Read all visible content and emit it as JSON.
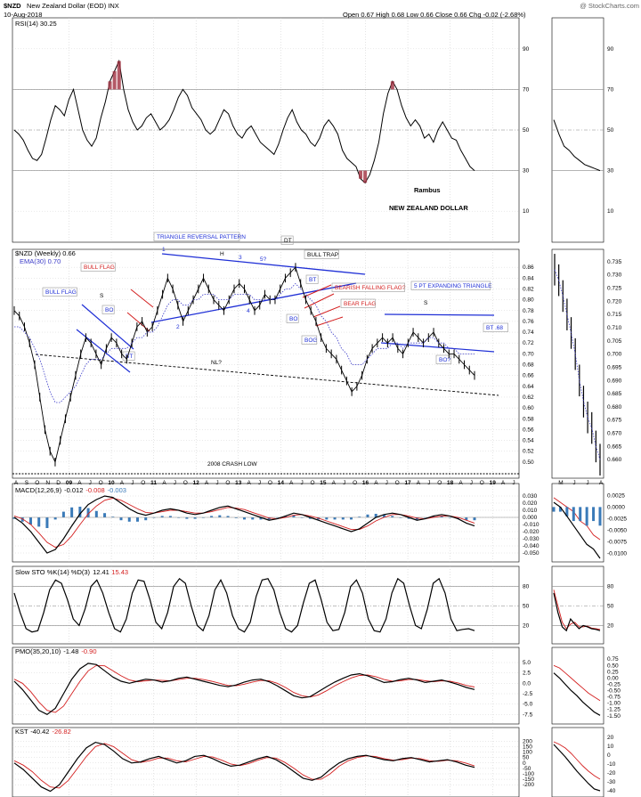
{
  "header": {
    "symbol": "$NZD",
    "name": "New Zealand Dollar (EOD) INX",
    "date": "10-Aug-2018",
    "quote": "Open 0.67  High 0.68  Low 0.66  Close 0.66  Chg -0.02 (-2.68%)",
    "watermark": "@ StockCharts.com"
  },
  "colors": {
    "price": "#000000",
    "ema": "#3a3ac8",
    "blue": "#1f2fd6",
    "red": "#d42020",
    "rsi_fill": "#a03040",
    "hist": "#3a7ab8",
    "grid": "#c8c8c8",
    "ref": "#888888"
  },
  "chart_data": [
    {
      "id": "rsi",
      "type": "line",
      "legend": "RSI(14) 30.25",
      "ylim": [
        0,
        100
      ],
      "yticks": [
        "90",
        "70",
        "50",
        "30",
        "10"
      ],
      "yticks_right": [
        "90",
        "70",
        "50",
        "30",
        "10"
      ],
      "reference_lines": [
        70,
        50,
        30
      ],
      "values": [
        50,
        48,
        45,
        40,
        36,
        35,
        38,
        46,
        55,
        62,
        60,
        57,
        65,
        70,
        60,
        50,
        45,
        42,
        46,
        56,
        64,
        74,
        79,
        84,
        70,
        60,
        54,
        50,
        52,
        56,
        58,
        54,
        50,
        52,
        55,
        60,
        66,
        70,
        67,
        61,
        58,
        55,
        50,
        48,
        50,
        55,
        60,
        58,
        52,
        48,
        46,
        50,
        52,
        48,
        44,
        42,
        40,
        38,
        43,
        50,
        56,
        60,
        54,
        50,
        48,
        44,
        42,
        46,
        52,
        55,
        52,
        48,
        40,
        36,
        34,
        32,
        26,
        24,
        28,
        35,
        44,
        58,
        68,
        74,
        70,
        62,
        56,
        52,
        55,
        52,
        46,
        48,
        44,
        50,
        54,
        50,
        46,
        45,
        40,
        36,
        32,
        30
      ],
      "annotations": [
        "Rambus",
        "NEW ZEALAND DOLLAR"
      ],
      "inset_values": [
        55,
        48,
        42,
        40,
        37,
        35,
        33,
        32,
        31,
        30
      ],
      "inset_yticks": [
        "90",
        "70",
        "50",
        "30",
        "10"
      ]
    },
    {
      "id": "price",
      "type": "line",
      "legend": "$NZD (Weekly) 0.66",
      "legend2": "EMA(30) 0.70",
      "ylim": [
        0.48,
        0.88
      ],
      "yticks": [
        "0.86",
        "0.84",
        "0.82",
        "0.80",
        "0.78",
        "0.76",
        "0.74",
        "0.72",
        "0.70",
        "0.68",
        "0.66",
        "0.64",
        "0.62",
        "0.60",
        "0.58",
        "0.56",
        "0.54",
        "0.52",
        "0.50"
      ],
      "x_labels": [
        "A",
        "S",
        "O",
        "N",
        "D",
        "09",
        "A",
        "J",
        "O",
        "10",
        "A",
        "J",
        "O",
        "11",
        "A",
        "J",
        "O",
        "12",
        "A",
        "J",
        "O",
        "13",
        "A",
        "J",
        "O",
        "14",
        "A",
        "J",
        "O",
        "15",
        "A",
        "J",
        "O",
        "16",
        "A",
        "J",
        "O",
        "17",
        "A",
        "J",
        "O",
        "18",
        "A",
        "J",
        "O",
        "19",
        "A",
        "J"
      ],
      "inset_x_labels": [
        "M",
        "J",
        "J",
        "A"
      ],
      "values": [
        0.78,
        0.77,
        0.75,
        0.72,
        0.68,
        0.62,
        0.56,
        0.52,
        0.5,
        0.54,
        0.58,
        0.62,
        0.66,
        0.7,
        0.73,
        0.72,
        0.7,
        0.68,
        0.71,
        0.73,
        0.72,
        0.7,
        0.69,
        0.72,
        0.75,
        0.76,
        0.74,
        0.75,
        0.78,
        0.81,
        0.84,
        0.82,
        0.79,
        0.76,
        0.78,
        0.8,
        0.82,
        0.84,
        0.82,
        0.8,
        0.79,
        0.78,
        0.8,
        0.82,
        0.83,
        0.82,
        0.8,
        0.78,
        0.79,
        0.81,
        0.8,
        0.8,
        0.82,
        0.84,
        0.85,
        0.86,
        0.83,
        0.8,
        0.78,
        0.76,
        0.73,
        0.71,
        0.7,
        0.69,
        0.67,
        0.65,
        0.63,
        0.64,
        0.66,
        0.69,
        0.71,
        0.72,
        0.73,
        0.72,
        0.73,
        0.71,
        0.7,
        0.72,
        0.74,
        0.73,
        0.72,
        0.73,
        0.74,
        0.72,
        0.71,
        0.7,
        0.7,
        0.69,
        0.68,
        0.67,
        0.66
      ],
      "ema": [
        0.75,
        0.75,
        0.74,
        0.73,
        0.71,
        0.69,
        0.66,
        0.63,
        0.61,
        0.61,
        0.62,
        0.63,
        0.64,
        0.66,
        0.68,
        0.69,
        0.69,
        0.69,
        0.7,
        0.71,
        0.71,
        0.71,
        0.71,
        0.72,
        0.73,
        0.73,
        0.74,
        0.74,
        0.75,
        0.77,
        0.79,
        0.8,
        0.8,
        0.79,
        0.79,
        0.8,
        0.8,
        0.81,
        0.81,
        0.81,
        0.8,
        0.8,
        0.8,
        0.81,
        0.81,
        0.81,
        0.81,
        0.8,
        0.8,
        0.8,
        0.8,
        0.8,
        0.81,
        0.82,
        0.82,
        0.83,
        0.82,
        0.81,
        0.8,
        0.79,
        0.77,
        0.76,
        0.74,
        0.73,
        0.71,
        0.7,
        0.68,
        0.68,
        0.68,
        0.69,
        0.7,
        0.71,
        0.71,
        0.71,
        0.72,
        0.72,
        0.71,
        0.72,
        0.72,
        0.72,
        0.72,
        0.73,
        0.73,
        0.72,
        0.72,
        0.71,
        0.71,
        0.7,
        0.7,
        0.7,
        0.7
      ],
      "inset_values": [
        0.732,
        0.728,
        0.722,
        0.715,
        0.708,
        0.7,
        0.69,
        0.682,
        0.676,
        0.672,
        0.665,
        0.66
      ],
      "inset_yticks": [
        "0.735",
        "0.730",
        "0.725",
        "0.720",
        "0.715",
        "0.710",
        "0.705",
        "0.700",
        "0.695",
        "0.690",
        "0.685",
        "0.680",
        "0.675",
        "0.670",
        "0.665",
        "0.660"
      ],
      "annotations": {
        "bull_flag_1": "BULL FLAG",
        "bull_flag_2": "BULL FLAG",
        "s_left": "S",
        "bo_left": "BO",
        "bt_left": "BT",
        "triangle": "TRIANGLE REVERSAL PATTERN",
        "h": "H",
        "dt": "DT",
        "bull_trap": "BULL TRAP",
        "bearish_flag": "BEARISH FALLING FLAG?",
        "bt_mid": "BT",
        "bo_mid": "BO",
        "bear_flag": "BEAR FLAG",
        "bog": "BOG",
        "expanding": "5 PT EXPANDING TRIANGLE",
        "s_right": "S",
        "bt_right": "BT .68",
        "bo_right": "BO?",
        "nl": "NL?",
        "crash": "2008 CRASH LOW",
        "pt1": "1",
        "pt2": "2",
        "pt3": "3",
        "pt4": "4",
        "pt5": "5?"
      }
    },
    {
      "id": "macd",
      "type": "line",
      "legend_name": "MACD(12,26,9)",
      "legend_values": [
        "-0.012",
        "-0.008",
        "-0.003"
      ],
      "ylim": [
        -0.055,
        0.035
      ],
      "yticks": [
        "0.030",
        "0.020",
        "0.010",
        "0.000",
        "-0.010",
        "-0.020",
        "-0.030",
        "-0.040",
        "-0.050"
      ],
      "values": [
        0.0,
        -0.008,
        -0.02,
        -0.035,
        -0.05,
        -0.045,
        -0.03,
        -0.012,
        0.005,
        0.018,
        0.025,
        0.03,
        0.028,
        0.02,
        0.012,
        0.006,
        0.003,
        0.006,
        0.01,
        0.012,
        0.01,
        0.006,
        0.004,
        0.006,
        0.01,
        0.014,
        0.016,
        0.012,
        0.008,
        0.004,
        0.0,
        -0.004,
        -0.002,
        0.002,
        0.006,
        0.004,
        0.0,
        -0.004,
        -0.008,
        -0.012,
        -0.016,
        -0.02,
        -0.016,
        -0.008,
        0.0,
        0.004,
        0.006,
        0.004,
        0.0,
        -0.004,
        -0.002,
        0.002,
        0.004,
        0.002,
        -0.002,
        -0.008,
        -0.012
      ],
      "signal": [
        0.002,
        -0.002,
        -0.01,
        -0.022,
        -0.035,
        -0.042,
        -0.038,
        -0.026,
        -0.01,
        0.005,
        0.016,
        0.024,
        0.027,
        0.024,
        0.018,
        0.012,
        0.007,
        0.006,
        0.008,
        0.01,
        0.01,
        0.008,
        0.006,
        0.006,
        0.008,
        0.011,
        0.014,
        0.013,
        0.011,
        0.007,
        0.003,
        -0.001,
        -0.002,
        0.0,
        0.003,
        0.004,
        0.002,
        -0.001,
        -0.005,
        -0.009,
        -0.013,
        -0.017,
        -0.017,
        -0.012,
        -0.005,
        0.0,
        0.004,
        0.004,
        0.002,
        -0.001,
        -0.002,
        0.0,
        0.002,
        0.002,
        0.0,
        -0.004,
        -0.008
      ],
      "inset_yticks": [
        "0.0025",
        "0.0000",
        "-0.0025",
        "-0.0050",
        "-0.0075",
        "-0.0100"
      ],
      "inset_values": [
        0.001,
        0.0,
        -0.002,
        -0.004,
        -0.006,
        -0.008,
        -0.009,
        -0.011
      ],
      "inset_signal": [
        0.002,
        0.001,
        0.0,
        -0.001,
        -0.003,
        -0.004,
        -0.006,
        -0.007
      ]
    },
    {
      "id": "sto",
      "type": "line",
      "legend_name": "Slow STO %K(14) %D(3)",
      "legend_values": [
        "12.41",
        "15.43"
      ],
      "ylim": [
        0,
        100
      ],
      "yticks": [
        "80",
        "50",
        "20"
      ],
      "reference_lines": [
        80,
        50,
        20
      ],
      "values": [
        70,
        40,
        15,
        10,
        12,
        40,
        75,
        90,
        85,
        60,
        30,
        20,
        45,
        80,
        90,
        70,
        40,
        15,
        10,
        30,
        70,
        90,
        88,
        60,
        25,
        15,
        40,
        80,
        92,
        85,
        50,
        20,
        12,
        35,
        75,
        90,
        70,
        35,
        15,
        10,
        25,
        65,
        90,
        92,
        75,
        40,
        15,
        10,
        20,
        55,
        85,
        90,
        60,
        25,
        12,
        14,
        40,
        80,
        90,
        70,
        30,
        12,
        10,
        30,
        70,
        92,
        85,
        50,
        20,
        15,
        45,
        85,
        92,
        70,
        30,
        12,
        14,
        15,
        12
      ],
      "inset_yticks": [
        "80",
        "50",
        "20"
      ],
      "inset_values": [
        70,
        40,
        18,
        12,
        30,
        22,
        15,
        20,
        18,
        15,
        14,
        12
      ],
      "inset_signal": [
        75,
        50,
        25,
        15,
        22,
        25,
        18,
        18,
        19,
        16,
        15,
        14
      ]
    },
    {
      "id": "pmo",
      "type": "line",
      "legend_name": "PMO(35,20,10)",
      "legend_values": [
        "-1.48",
        "-0.90"
      ],
      "ylim": [
        -8.5,
        6.5
      ],
      "yticks": [
        "5.0",
        "2.5",
        "0.0",
        "-2.5",
        "-5.0",
        "-7.5"
      ],
      "values": [
        0.5,
        -1.5,
        -4.0,
        -6.5,
        -7.5,
        -6.0,
        -2.5,
        1.0,
        3.5,
        4.8,
        4.5,
        3.0,
        1.5,
        0.5,
        0.0,
        0.5,
        1.0,
        0.8,
        0.3,
        0.6,
        1.2,
        1.5,
        1.0,
        0.5,
        0.0,
        -0.5,
        -0.8,
        -0.4,
        0.3,
        0.8,
        1.0,
        0.4,
        -0.6,
        -1.8,
        -3.0,
        -3.5,
        -3.2,
        -2.0,
        -0.8,
        0.3,
        1.2,
        2.0,
        2.3,
        1.8,
        1.0,
        0.2,
        0.4,
        0.9,
        1.2,
        0.8,
        0.2,
        0.5,
        0.8,
        0.3,
        -0.3,
        -1.0,
        -1.5
      ],
      "signal": [
        1.0,
        0.0,
        -2.0,
        -4.5,
        -6.5,
        -7.0,
        -5.5,
        -2.5,
        0.5,
        3.0,
        4.3,
        4.2,
        3.0,
        1.8,
        0.8,
        0.4,
        0.6,
        0.8,
        0.7,
        0.6,
        0.9,
        1.2,
        1.2,
        0.9,
        0.5,
        0.0,
        -0.5,
        -0.6,
        -0.2,
        0.3,
        0.7,
        0.6,
        0.0,
        -1.0,
        -2.2,
        -3.0,
        -3.3,
        -2.8,
        -1.8,
        -0.6,
        0.4,
        1.3,
        1.9,
        2.0,
        1.6,
        0.9,
        0.5,
        0.6,
        0.9,
        0.9,
        0.6,
        0.4,
        0.6,
        0.5,
        0.1,
        -0.5,
        -0.9
      ],
      "inset_yticks": [
        "0.75",
        "0.50",
        "0.25",
        "0.00",
        "-0.25",
        "-0.50",
        "-0.75",
        "-1.00",
        "-1.25",
        "-1.50"
      ],
      "inset_values": [
        0.2,
        0.0,
        -0.25,
        -0.5,
        -0.7,
        -0.95,
        -1.15,
        -1.35,
        -1.48
      ],
      "inset_signal": [
        0.5,
        0.4,
        0.2,
        0.0,
        -0.2,
        -0.4,
        -0.6,
        -0.75,
        -0.9
      ]
    },
    {
      "id": "kst",
      "type": "line",
      "legend_name": "KST",
      "legend_values": [
        "-40.42",
        "-26.82"
      ],
      "ylim": [
        -280,
        260
      ],
      "yticks": [
        "200",
        "150",
        "100",
        "50",
        "0",
        "-50",
        "-100",
        "-150",
        "-200"
      ],
      "values": [
        0,
        -60,
        -140,
        -220,
        -260,
        -200,
        -80,
        40,
        140,
        190,
        170,
        110,
        40,
        0,
        10,
        40,
        60,
        30,
        0,
        20,
        60,
        70,
        40,
        0,
        -30,
        -20,
        10,
        40,
        60,
        30,
        -20,
        -80,
        -140,
        -160,
        -130,
        -60,
        0,
        40,
        60,
        70,
        50,
        30,
        20,
        40,
        50,
        30,
        10,
        20,
        30,
        10,
        -20,
        -40
      ],
      "signal": [
        20,
        -20,
        -80,
        -160,
        -220,
        -230,
        -160,
        -50,
        60,
        150,
        180,
        150,
        90,
        30,
        5,
        20,
        45,
        45,
        20,
        10,
        35,
        60,
        55,
        25,
        -10,
        -25,
        -5,
        25,
        50,
        45,
        5,
        -50,
        -110,
        -150,
        -150,
        -100,
        -30,
        20,
        50,
        65,
        60,
        40,
        25,
        30,
        45,
        40,
        20,
        15,
        25,
        20,
        0,
        -27
      ],
      "inset_yticks": [
        "20",
        "10",
        "0",
        "-10",
        "-20",
        "-30",
        "-40"
      ],
      "inset_values": [
        12,
        5,
        -2,
        -10,
        -18,
        -25,
        -32,
        -38,
        -40
      ],
      "inset_signal": [
        15,
        12,
        8,
        2,
        -5,
        -12,
        -18,
        -23,
        -27
      ]
    }
  ]
}
